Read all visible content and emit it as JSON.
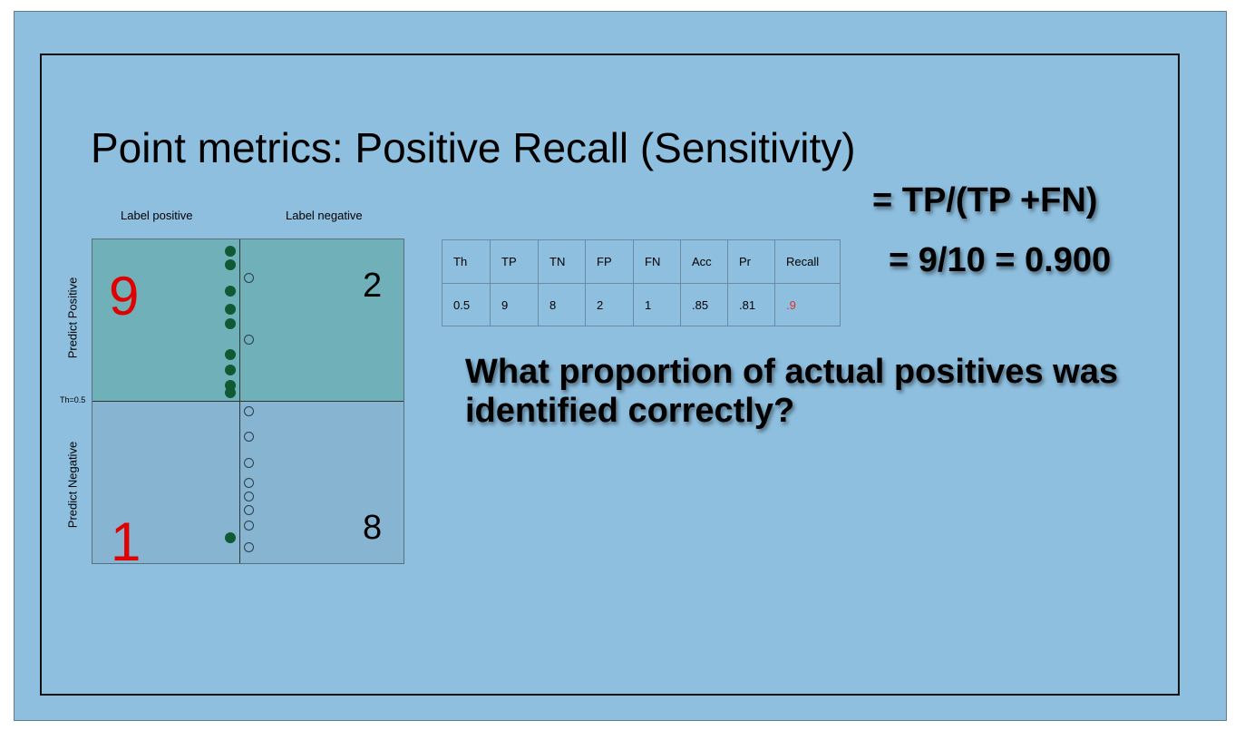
{
  "title": "Point metrics: Positive Recall (Sensitivity)",
  "matrix": {
    "col_labels": [
      "Label positive",
      "Label negative"
    ],
    "row_labels": [
      "Predict Positive",
      "Predict Negative"
    ],
    "threshold_label": "Th=0.5",
    "counts": {
      "tp": "9",
      "fp": "2",
      "fn": "1",
      "tn": "8"
    },
    "colors": {
      "highlight": "#e00000",
      "normal": "#000000",
      "tp_bg": "#6fb0b9",
      "other_bg": "#86b4d1",
      "dot": "#0f5a32"
    }
  },
  "table": {
    "headers": [
      "Th",
      "TP",
      "TN",
      "FP",
      "FN",
      "Acc",
      "Pr",
      "Recall"
    ],
    "rows": [
      [
        "0.5",
        "9",
        "8",
        "2",
        "1",
        ".85",
        ".81",
        ".9"
      ]
    ],
    "highlight_color": "#e03030"
  },
  "formula": {
    "line1": "= TP/(TP +FN)",
    "line2": "= 9/10 = 0.900"
  },
  "question": "What proportion of actual positives was identified correctly?"
}
